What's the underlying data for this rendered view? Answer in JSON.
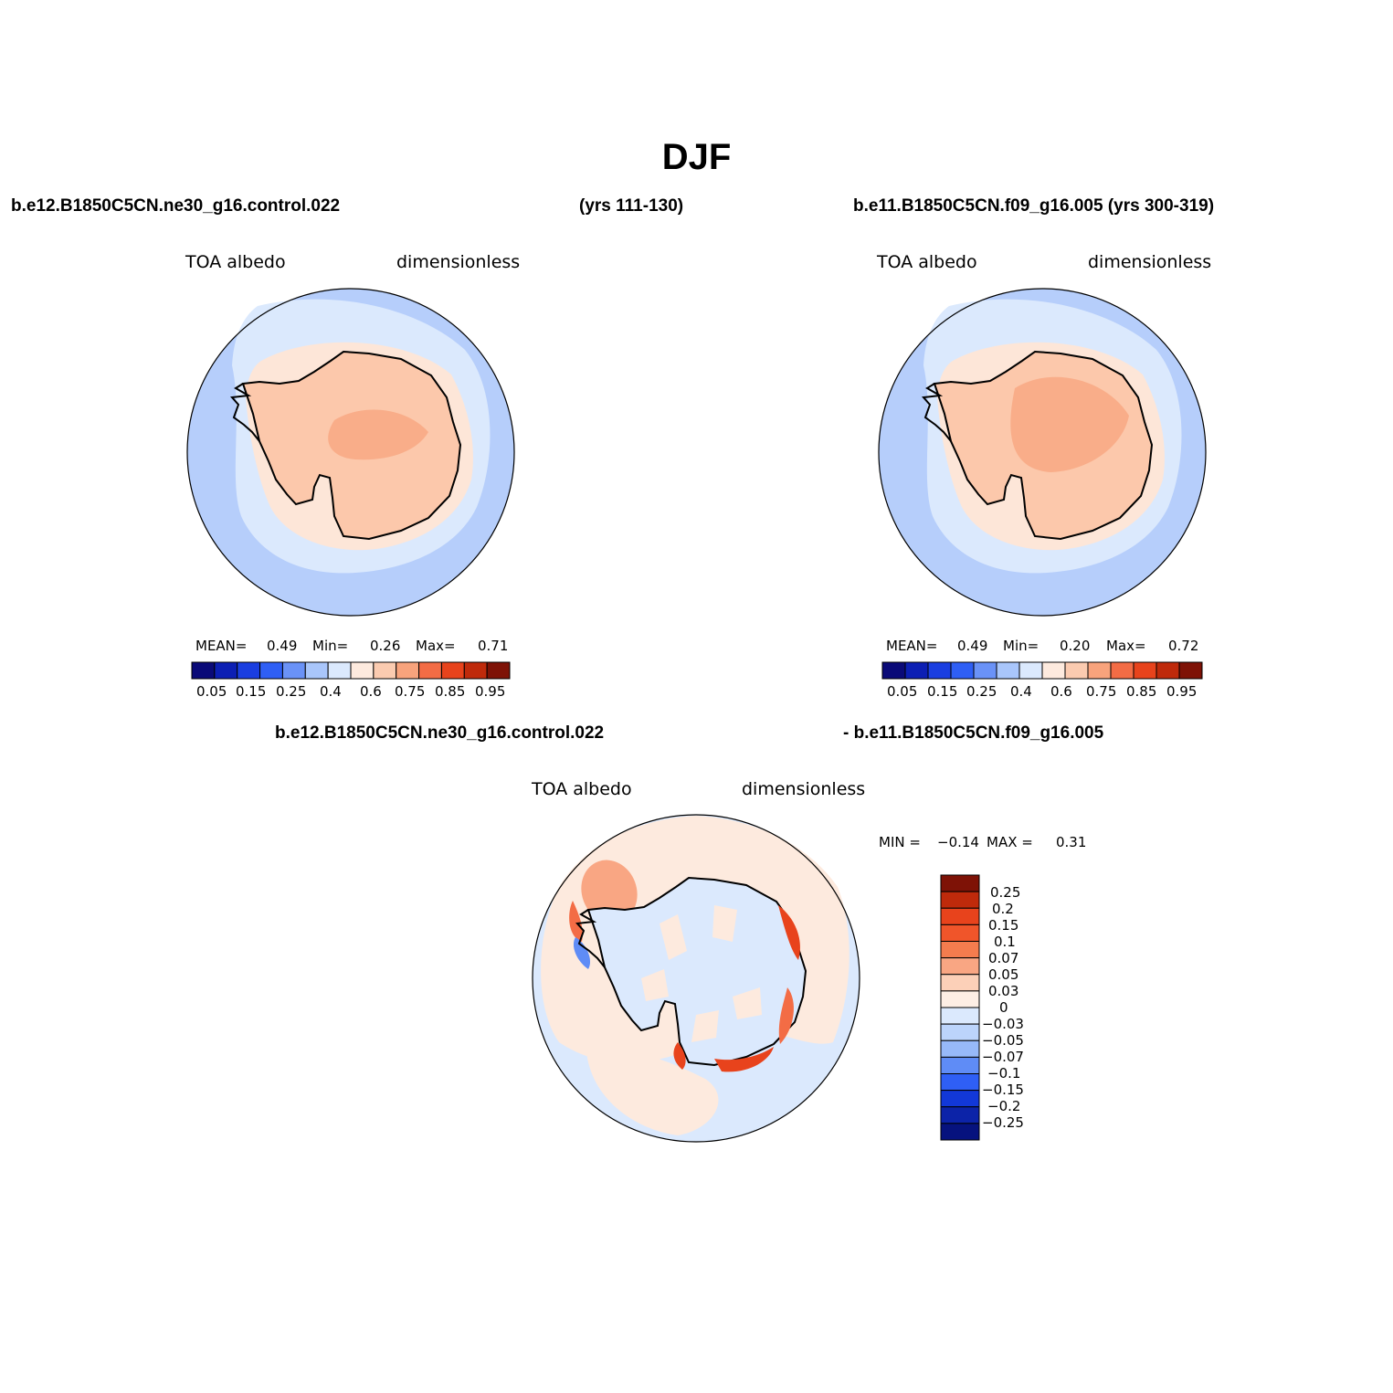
{
  "page": {
    "season_title": "DJF",
    "colors": {
      "land_outline": "#000000",
      "background": "#ffffff"
    }
  },
  "top_left": {
    "case_name": "b.e12.B1850C5CN.ne30_g16.control.022",
    "years": "(yrs 111-130)",
    "variable": "TOA albedo",
    "units": "dimensionless",
    "stats": {
      "mean_label": "MEAN=",
      "mean_value": "0.49",
      "min_label": "Min=",
      "min_value": "0.26",
      "max_label": "Max=",
      "max_value": "0.71"
    }
  },
  "top_right": {
    "case_name": "b.e11.B1850C5CN.f09_g16.005 (yrs 300-319)",
    "variable": "TOA albedo",
    "units": "dimensionless",
    "stats": {
      "mean_label": "MEAN=",
      "mean_value": "0.49",
      "min_label": "Min=",
      "min_value": "0.20",
      "max_label": "Max=",
      "max_value": "0.72"
    }
  },
  "top_colorbar": {
    "colors": [
      "#0a0a78",
      "#0c1fb4",
      "#1a3ee0",
      "#2f5ff5",
      "#6a92f7",
      "#a9c6fb",
      "#dbe9fd",
      "#fdeade",
      "#fbcbb0",
      "#f8a37c",
      "#f36c45",
      "#e8431c",
      "#bf2a0b",
      "#7e1206"
    ],
    "labels": [
      "0.05",
      "0.15",
      "0.25",
      "0.4",
      "0.6",
      "0.75",
      "0.85",
      "0.95"
    ]
  },
  "bottom": {
    "title_left": "b.e12.B1850C5CN.ne30_g16.control.022",
    "title_right": "- b.e11.B1850C5CN.f09_g16.005",
    "variable": "TOA albedo",
    "units": "dimensionless",
    "min_label": "MIN =",
    "min_value": "−0.14",
    "max_label": "MAX =",
    "max_value": "0.31"
  },
  "diff_colorbar": {
    "colors_top_to_bottom": [
      "#7e1206",
      "#bf2a0b",
      "#e8431c",
      "#f0552a",
      "#f47c4e",
      "#f9a683",
      "#fcd0b8",
      "#fdeee4",
      "#dbe9fd",
      "#bcd4fb",
      "#97b9f9",
      "#5f8cf6",
      "#2f5ff5",
      "#1238d8",
      "#0c23a8",
      "#06127e"
    ],
    "labels": [
      "0.25",
      "0.2",
      "0.15",
      "0.1",
      "0.07",
      "0.05",
      "0.03",
      "0",
      "−0.03",
      "−0.05",
      "−0.07",
      "−0.1",
      "−0.15",
      "−0.2",
      "−0.25"
    ]
  },
  "chart_data": [
    {
      "type": "heatmap",
      "title": "TOA albedo",
      "subtitle": "b.e12.B1850C5CN.ne30_g16.control.022 (yrs 111-130)",
      "projection": "south polar stereographic",
      "units": "dimensionless",
      "mean": 0.49,
      "min": 0.26,
      "max": 0.71,
      "contour_levels": [
        0.05,
        0.1,
        0.15,
        0.2,
        0.25,
        0.3,
        0.4,
        0.5,
        0.6,
        0.65,
        0.75,
        0.8,
        0.85,
        0.9,
        0.95
      ]
    },
    {
      "type": "heatmap",
      "title": "TOA albedo",
      "subtitle": "b.e11.B1850C5CN.f09_g16.005 (yrs 300-319)",
      "projection": "south polar stereographic",
      "units": "dimensionless",
      "mean": 0.49,
      "min": 0.2,
      "max": 0.72,
      "contour_levels": [
        0.05,
        0.1,
        0.15,
        0.2,
        0.25,
        0.3,
        0.4,
        0.5,
        0.6,
        0.65,
        0.75,
        0.8,
        0.85,
        0.9,
        0.95
      ]
    },
    {
      "type": "heatmap",
      "title": "TOA albedo",
      "subtitle": "b.e12.B1850C5CN.ne30_g16.control.022 - b.e11.B1850C5CN.f09_g16.005",
      "projection": "south polar stereographic",
      "units": "dimensionless",
      "min": -0.14,
      "max": 0.31,
      "contour_levels": [
        -0.25,
        -0.2,
        -0.15,
        -0.1,
        -0.07,
        -0.05,
        -0.03,
        0,
        0.03,
        0.05,
        0.07,
        0.1,
        0.15,
        0.2,
        0.25
      ]
    }
  ]
}
